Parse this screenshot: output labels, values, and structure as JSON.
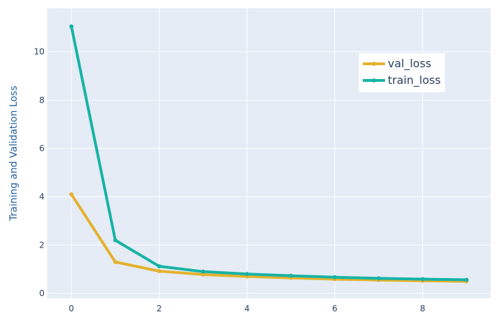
{
  "chart_data": {
    "type": "line",
    "title": "",
    "xlabel": "",
    "ylabel": "Training and Validation Loss",
    "x": [
      0,
      1,
      2,
      3,
      4,
      5,
      6,
      7,
      8,
      9
    ],
    "xlim": [
      -0.55,
      9.55
    ],
    "ylim": [
      -0.2,
      11.8
    ],
    "x_ticks": [
      0,
      2,
      4,
      6,
      8
    ],
    "y_ticks": [
      0,
      2,
      4,
      6,
      8,
      10
    ],
    "grid": true,
    "legend_position": "top-right",
    "series": [
      {
        "name": "val_loss",
        "color": "#e4b22e",
        "values": [
          4.1,
          1.3,
          0.92,
          0.78,
          0.7,
          0.64,
          0.59,
          0.55,
          0.52,
          0.5
        ]
      },
      {
        "name": "train_loss",
        "color": "#17b3a6",
        "values": [
          11.05,
          2.2,
          1.12,
          0.9,
          0.8,
          0.73,
          0.67,
          0.62,
          0.59,
          0.56
        ]
      }
    ]
  },
  "colors": {
    "plot_background": "#e5ecf6",
    "grid": "#ffffff",
    "tick_text": "#2a3f5f",
    "ylabel_text": "#1f5f9c"
  }
}
